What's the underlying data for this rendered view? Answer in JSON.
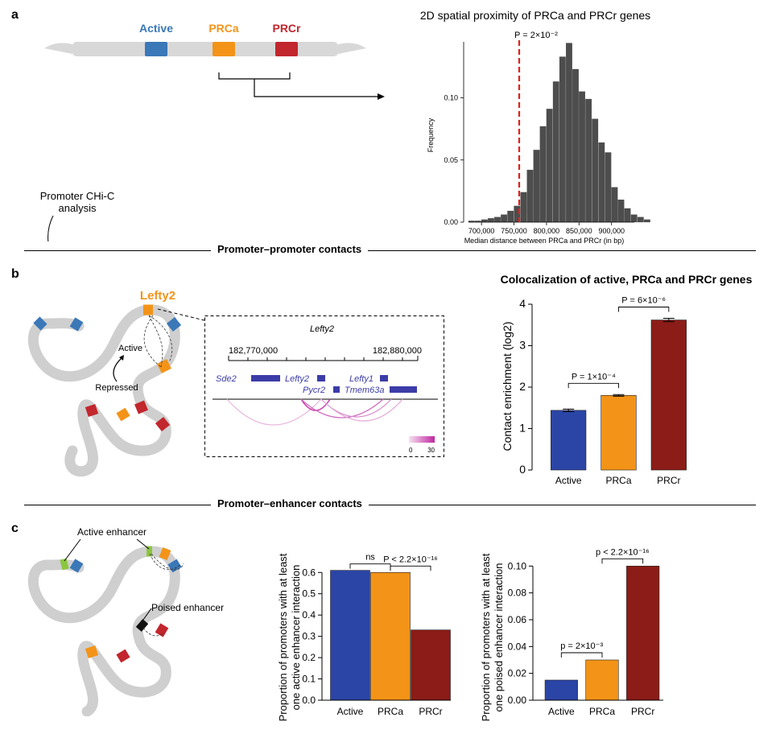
{
  "panels": {
    "a": "a",
    "b": "b",
    "c": "c"
  },
  "sections": {
    "pp": "Promoter–promoter contacts",
    "pe": "Promoter–enhancer contacts"
  },
  "panel_a": {
    "legend": [
      "Active",
      "PRCa",
      "PRCr"
    ],
    "colors": {
      "active": "#3a78b8",
      "prca": "#f39418",
      "prcr": "#c1272d"
    },
    "side_label_line1": "Promoter CHi-C",
    "side_label_line2": "analysis"
  },
  "panel_b": {
    "gene_label": "Lefty2",
    "active_label": "Active",
    "repressed_label": "Repressed",
    "track": {
      "title": "Lefty2",
      "coord_left": "182,770,000",
      "coord_right": "182,880,000",
      "genes": [
        "Sde2",
        "Lefty2",
        "Pycr2",
        "Lefty1",
        "Tmem63a"
      ],
      "scale_min": "0",
      "scale_max": "30"
    }
  },
  "panel_c": {
    "active_enhancer": "Active enhancer",
    "poised_enhancer": "Poised enhancer"
  },
  "chart_data": [
    {
      "type": "bar",
      "title": "2D spatial proximity of PRCa and PRCr genes",
      "xlabel": "Median distance between PRCa and PRCr (in bp)",
      "ylabel": "Frequency",
      "annotation": "P = 2×10⁻²",
      "observed_x": 758000,
      "bin_start": 680000,
      "bin_width": 10000,
      "values": [
        0.001,
        0.001,
        0.002,
        0.003,
        0.004,
        0.006,
        0.009,
        0.013,
        0.024,
        0.042,
        0.058,
        0.077,
        0.091,
        0.113,
        0.133,
        0.144,
        0.123,
        0.105,
        0.099,
        0.083,
        0.064,
        0.056,
        0.028,
        0.018,
        0.011,
        0.006,
        0.004,
        0.002
      ],
      "xticks": [
        700000,
        750000,
        800000,
        850000,
        900000
      ],
      "xtick_labels": [
        "700,000",
        "750,000",
        "800,000",
        "850,000",
        "900,000"
      ],
      "yticks": [
        0,
        0.05,
        0.1
      ],
      "ytick_labels": [
        "0.00",
        "0.05",
        "0.10"
      ],
      "xlim": [
        680000,
        935000
      ],
      "ylim": [
        0,
        0.145
      ]
    },
    {
      "type": "bar",
      "title": "Colocalization of active, PRCa and PRCr genes",
      "ylabel": "Contact enrichment (log2)",
      "categories": [
        "Active",
        "PRCa",
        "PRCr"
      ],
      "values": [
        1.44,
        1.8,
        3.62
      ],
      "errors": [
        0.03,
        0.02,
        0.04
      ],
      "ylim": [
        0,
        4
      ],
      "yticks": [
        0,
        1,
        2,
        3,
        4
      ],
      "colors": [
        "#2b45a6",
        "#f39418",
        "#8b1c17"
      ],
      "comparisons": [
        {
          "label": "P = 1×10⁻⁴",
          "from": 0,
          "to": 1
        },
        {
          "label": "P = 6×10⁻⁶",
          "from": 1,
          "to": 2
        }
      ]
    },
    {
      "type": "bar",
      "ylabel_line1": "Proportion of promoters with at least",
      "ylabel_line2": "one active enhancer interaction",
      "categories": [
        "Active",
        "PRCa",
        "PRCr"
      ],
      "values": [
        0.61,
        0.6,
        0.33
      ],
      "ylim": [
        0,
        0.62
      ],
      "yticks": [
        0,
        0.1,
        0.2,
        0.3,
        0.4,
        0.5,
        0.6
      ],
      "ytick_labels": [
        "0.0",
        "0.1",
        "0.2",
        "0.3",
        "0.4",
        "0.5",
        "0.6"
      ],
      "colors": [
        "#2b45a6",
        "#f39418",
        "#8b1c17"
      ],
      "comparisons": [
        {
          "label": "ns",
          "from": 0,
          "to": 1
        },
        {
          "label": "P < 2.2×10⁻¹⁶",
          "from": 1,
          "to": 2
        }
      ]
    },
    {
      "type": "bar",
      "ylabel_line1": "Proportion of promoters with at least",
      "ylabel_line2": "one poised enhancer interaction",
      "categories": [
        "Active",
        "PRCa",
        "PRCr"
      ],
      "values": [
        0.015,
        0.03,
        0.1
      ],
      "ylim": [
        0,
        0.102
      ],
      "yticks": [
        0,
        0.02,
        0.04,
        0.06,
        0.08,
        0.1
      ],
      "ytick_labels": [
        "0.00",
        "0.02",
        "0.04",
        "0.06",
        "0.08",
        "0.10"
      ],
      "colors": [
        "#2b45a6",
        "#f39418",
        "#8b1c17"
      ],
      "comparisons": [
        {
          "label": "p = 2×10⁻³",
          "from": 0,
          "to": 1
        },
        {
          "label": "p < 2.2×10⁻¹⁶",
          "from": 1,
          "to": 2
        }
      ]
    }
  ]
}
